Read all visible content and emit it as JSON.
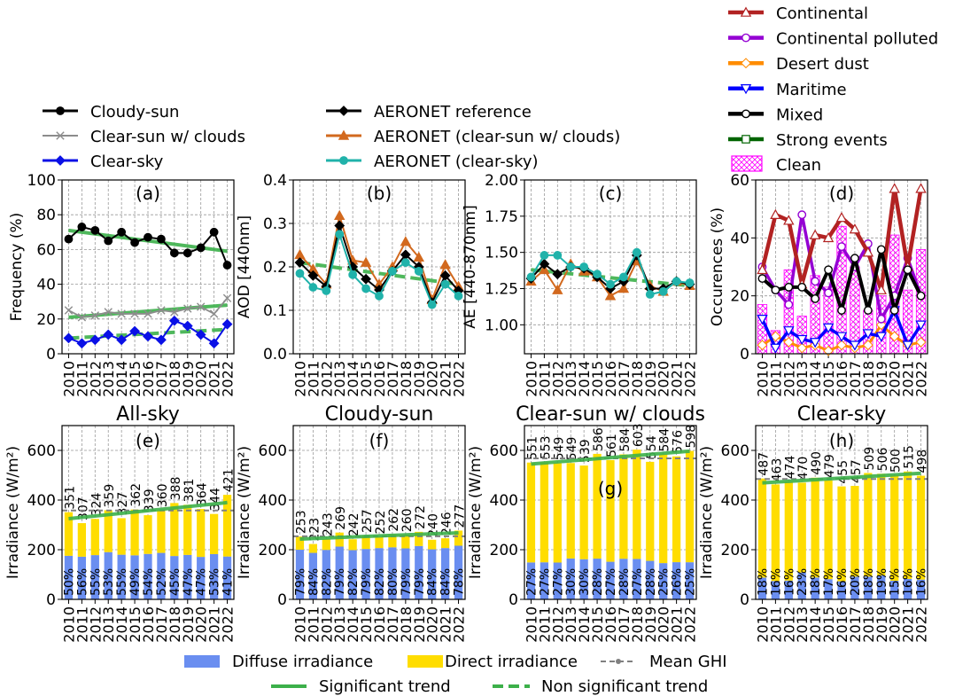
{
  "years": [
    "2010",
    "2011",
    "2012",
    "2013",
    "2014",
    "2015",
    "2016",
    "2017",
    "2018",
    "2019",
    "2020",
    "2021",
    "2022"
  ],
  "colors": {
    "cloudy": "#000000",
    "clearsun": "#8c8c8c",
    "clearsky": "#0a10e6",
    "aeronet_ref": "#000000",
    "aeronet_cs": "#d2691e",
    "aeronet_sky": "#20b2aa",
    "continental": "#b22222",
    "cont_polluted": "#9400d3",
    "desert_dust": "#ff8c00",
    "maritime": "#0000ff",
    "mixed": "#000000",
    "strong": "#006400",
    "clean": "#ff00ff",
    "trend": "#3cb04a",
    "diffuse": "#6a8ef0",
    "direct": "#ffdd00",
    "meanghi": "#808080"
  },
  "legends": {
    "freq": [
      "Cloudy-sun",
      "Clear-sun w/ clouds",
      "Clear-sky"
    ],
    "aeronet": [
      "AERONET reference",
      "AERONET (clear-sun w/ clouds)",
      "AERONET (clear-sky)"
    ],
    "types": [
      "Continental",
      "Continental polluted",
      "Desert dust",
      "Maritime",
      "Mixed",
      "Strong events",
      "Clean"
    ],
    "bottom": [
      "Diffuse irradiance",
      "Direct irradiance",
      "Mean GHI",
      "Significant trend",
      "Non significant trend"
    ]
  },
  "chart_data": [
    {
      "type": "line",
      "panel": "(a)",
      "xlabel": "",
      "ylabel": "Frequency (%)",
      "ylim": [
        0,
        100
      ],
      "yticks": [
        0,
        20,
        40,
        60,
        80,
        100
      ],
      "grid": true,
      "series": [
        {
          "name": "Cloudy-sun",
          "values": [
            66,
            73,
            71,
            65,
            70,
            64,
            67,
            66,
            58,
            58,
            61,
            70,
            51
          ]
        },
        {
          "name": "Clear-sun w/ clouds",
          "values": [
            25,
            21,
            22,
            24,
            23,
            23,
            23,
            25,
            24,
            26,
            27,
            23,
            32
          ]
        },
        {
          "name": "Clear-sky",
          "values": [
            9,
            6,
            8,
            11,
            8,
            13,
            10,
            8,
            19,
            16,
            11,
            6,
            17
          ]
        }
      ],
      "trends": [
        {
          "from": 71,
          "to": 59,
          "significant": true
        },
        {
          "from": 21,
          "to": 28,
          "significant": true
        },
        {
          "from": 9,
          "to": 14,
          "significant": false
        }
      ]
    },
    {
      "type": "line",
      "panel": "(b)",
      "ylabel": "AOD [440nm]",
      "ylim": [
        0,
        0.4
      ],
      "yticks": [
        "0.0",
        "0.1",
        "0.2",
        "0.3",
        "0.4"
      ],
      "grid": true,
      "series": [
        {
          "name": "AERONET reference",
          "values": [
            0.21,
            0.18,
            0.155,
            0.295,
            0.2,
            0.172,
            0.147,
            0.19,
            0.228,
            0.2,
            0.118,
            0.18,
            0.145
          ]
        },
        {
          "name": "AERONET (clear-sun w/ clouds)",
          "values": [
            0.228,
            0.195,
            0.16,
            0.318,
            0.215,
            0.21,
            0.16,
            0.2,
            0.258,
            0.222,
            0.124,
            0.205,
            0.155
          ]
        },
        {
          "name": "AERONET (clear-sky)",
          "values": [
            0.185,
            0.153,
            0.145,
            0.275,
            0.182,
            0.15,
            0.133,
            0.19,
            0.21,
            0.19,
            0.113,
            0.16,
            0.133
          ]
        }
      ],
      "trends": [
        {
          "from": 0.21,
          "to": 0.16,
          "significant": false
        }
      ]
    },
    {
      "type": "line",
      "panel": "(c)",
      "ylabel": "AE [440-870nm]",
      "ylim": [
        0.8,
        2.0
      ],
      "yticks": [
        "1.00",
        "1.25",
        "1.50",
        "1.75",
        "2.00"
      ],
      "grid": true,
      "series": [
        {
          "name": "AERONET reference",
          "values": [
            1.32,
            1.42,
            1.35,
            1.4,
            1.39,
            1.33,
            1.25,
            1.3,
            1.48,
            1.25,
            1.25,
            1.3,
            1.28
          ]
        },
        {
          "name": "AERONET (clear-sun w/ clouds)",
          "values": [
            1.3,
            1.38,
            1.24,
            1.42,
            1.37,
            1.33,
            1.2,
            1.25,
            1.44,
            1.27,
            1.23,
            1.3,
            1.27
          ]
        },
        {
          "name": "AERONET (clear-sky)",
          "values": [
            1.33,
            1.48,
            1.48,
            1.4,
            1.4,
            1.35,
            1.28,
            1.33,
            1.5,
            1.21,
            1.23,
            1.3,
            1.29
          ]
        }
      ],
      "trends": [
        {
          "from": 1.38,
          "to": 1.27,
          "significant": false
        }
      ]
    },
    {
      "type": "line",
      "panel": "(d)",
      "ylabel": "Occurences (%)",
      "ylim": [
        0,
        60
      ],
      "yticks": [
        0,
        20,
        40,
        60
      ],
      "grid": true,
      "series": [
        {
          "name": "Continental",
          "values": [
            29,
            48,
            46,
            24,
            41,
            40,
            47,
            43,
            35,
            22,
            57,
            30,
            57
          ]
        },
        {
          "name": "Continental polluted",
          "values": [
            30,
            22,
            17,
            48,
            25,
            21,
            37,
            30,
            38,
            12,
            20,
            33,
            20
          ]
        },
        {
          "name": "Desert dust",
          "values": [
            3,
            6,
            4,
            2,
            3,
            1,
            3,
            2,
            3,
            10,
            6,
            3,
            4
          ]
        },
        {
          "name": "Maritime",
          "values": [
            12,
            2,
            8,
            5,
            4,
            9,
            6,
            3,
            7,
            6,
            15,
            3,
            10
          ]
        },
        {
          "name": "Mixed",
          "values": [
            26,
            22,
            23,
            23,
            19,
            29,
            15,
            33,
            15,
            36,
            15,
            29,
            20
          ]
        },
        {
          "name": "Clean",
          "values": [
            17,
            8,
            29,
            13,
            27,
            23,
            44,
            30,
            15,
            20,
            41,
            22,
            36
          ]
        }
      ]
    },
    {
      "type": "bar",
      "panel": "(e)",
      "title": "All-sky",
      "ylabel": "Irradiance (W/m²)",
      "ylim": [
        0,
        700
      ],
      "yticks": [
        0,
        200,
        400,
        600
      ],
      "grid": true,
      "totals": [
        351,
        307,
        324,
        359,
        327,
        362,
        339,
        360,
        388,
        381,
        364,
        344,
        421
      ],
      "diffuse_pct": [
        "50%",
        "56%",
        "55%",
        "53%",
        "55%",
        "49%",
        "54%",
        "52%",
        "45%",
        "47%",
        "47%",
        "53%",
        "41%"
      ],
      "mean_ghi": 358,
      "trend": {
        "from": 325,
        "to": 390,
        "significant": true
      }
    },
    {
      "type": "bar",
      "panel": "(f)",
      "title": "Cloudy-sun",
      "ylabel": "Irradiance (W/m²)",
      "ylim": [
        0,
        700
      ],
      "yticks": [
        0,
        200,
        400,
        600
      ],
      "grid": true,
      "totals": [
        253,
        223,
        243,
        269,
        242,
        257,
        252,
        262,
        260,
        272,
        240,
        246,
        277
      ],
      "diffuse_pct": [
        "79%",
        "84%",
        "82%",
        "79%",
        "82%",
        "79%",
        "82%",
        "80%",
        "79%",
        "79%",
        "84%",
        "84%",
        "78%"
      ],
      "mean_ghi": 254,
      "trend": {
        "from": 243,
        "to": 268,
        "significant": true
      }
    },
    {
      "type": "bar",
      "panel": "(g)",
      "title": "Clear-sun w/ clouds",
      "ylabel": "Irradiance (W/m²)",
      "ylim": [
        0,
        700
      ],
      "yticks": [
        0,
        200,
        400,
        600
      ],
      "grid": true,
      "totals": [
        551,
        553,
        549,
        549,
        539,
        586,
        561,
        584,
        603,
        554,
        584,
        576,
        598
      ],
      "diffuse_pct": [
        "27%",
        "27%",
        "27%",
        "30%",
        "30%",
        "28%",
        "27%",
        "28%",
        "27%",
        "28%",
        "25%",
        "26%",
        "25%"
      ],
      "mean_ghi": 568,
      "trend": {
        "from": 545,
        "to": 597,
        "significant": true
      }
    },
    {
      "type": "bar",
      "panel": "(h)",
      "title": "Clear-sky",
      "ylabel": "Irradiance (W/m²)",
      "ylim": [
        0,
        700
      ],
      "yticks": [
        0,
        200,
        400,
        600
      ],
      "grid": true,
      "totals": [
        487,
        463,
        474,
        470,
        490,
        479,
        455,
        457,
        509,
        506,
        500,
        515,
        498
      ],
      "diffuse_pct": [
        "18%",
        "16%",
        "16%",
        "23%",
        "18%",
        "17%",
        "16%",
        "20%",
        "18%",
        "19%",
        "15%",
        "16%",
        "16%"
      ],
      "mean_ghi": 485,
      "trend": {
        "from": 469,
        "to": 508,
        "significant": true
      }
    }
  ]
}
